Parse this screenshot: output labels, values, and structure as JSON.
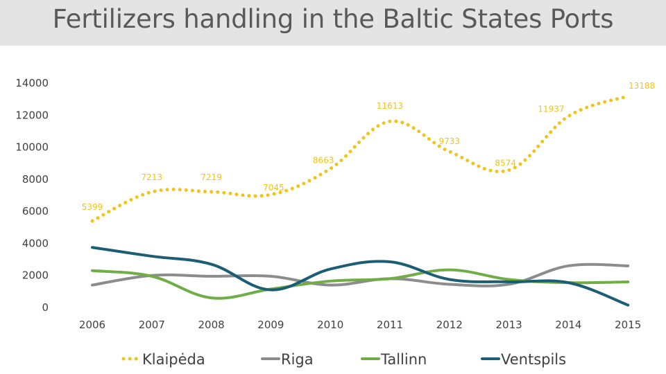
{
  "chart_data": {
    "type": "line",
    "title": "Fertilizers handling in the Baltic States Ports",
    "categories": [
      "2006",
      "2007",
      "2008",
      "2009",
      "2010",
      "2011",
      "2012",
      "2013",
      "2014",
      "2015"
    ],
    "ylim": [
      0,
      14000
    ],
    "yticks": [
      "0",
      "2000",
      "4000",
      "6000",
      "8000",
      "10000",
      "12000",
      "14000"
    ],
    "xlabel": "",
    "ylabel": "",
    "legend_position": "bottom",
    "series": [
      {
        "name": "Klaipėda",
        "color": "#f0c419",
        "style": "dotted",
        "values": [
          5399,
          7213,
          7219,
          7045,
          8663,
          11613,
          9733,
          8574,
          11937,
          13188
        ],
        "labels": [
          "5399",
          "7213",
          "7219",
          "7045",
          "8663",
          "11613",
          "9733",
          "8574",
          "11937",
          "13188"
        ]
      },
      {
        "name": "Riga",
        "color": "#8c8c8c",
        "style": "solid",
        "values": [
          1400,
          2000,
          1950,
          1950,
          1400,
          1800,
          1450,
          1450,
          2600,
          2600
        ]
      },
      {
        "name": "Tallinn",
        "color": "#70ad47",
        "style": "solid",
        "values": [
          2300,
          1950,
          600,
          1150,
          1650,
          1800,
          2350,
          1750,
          1550,
          1600
        ]
      },
      {
        "name": "Ventspils",
        "color": "#1b5e73",
        "style": "solid",
        "values": [
          3750,
          3200,
          2700,
          1100,
          2400,
          2850,
          1750,
          1600,
          1550,
          150
        ]
      }
    ]
  }
}
